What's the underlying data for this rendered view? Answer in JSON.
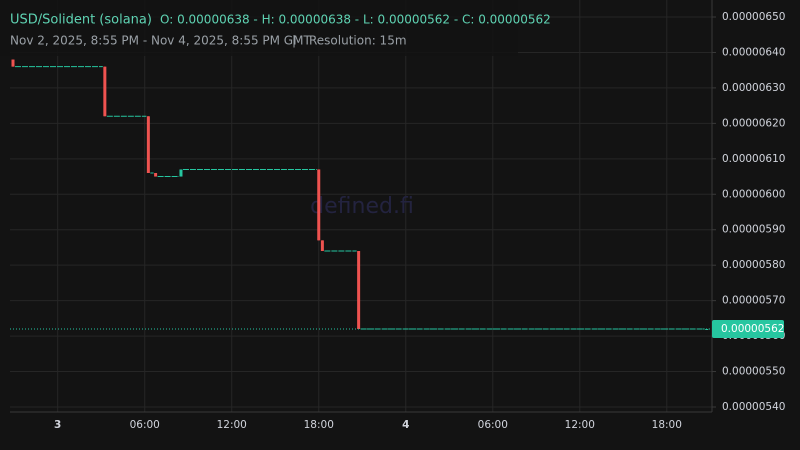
{
  "chart_data": {
    "type": "candlestick",
    "title": "USD/Solident (solana)",
    "ohlc": "O: 0.00000638 - H: 0.00000638 - L: 0.00000562 - C: 0.00000562",
    "subtitle": "Nov 2, 2025, 8:55 PM - Nov 4, 2025, 8:55 PM GMT",
    "separator": "|",
    "resolution": "Resolution: 15m",
    "watermark": "defined.fi",
    "up_color": "#26c6a0",
    "down_color": "#ef5350",
    "grid": true,
    "xlim": [
      "2025-11-02T20:55",
      "2025-11-04T21:07"
    ],
    "xticks": [
      {
        "value": "2025-11-03T00:00",
        "label": "3"
      },
      {
        "value": "2025-11-03T06:00",
        "label": "06:00"
      },
      {
        "value": "2025-11-03T12:00",
        "label": "12:00"
      },
      {
        "value": "2025-11-03T18:00",
        "label": "18:00"
      },
      {
        "value": "2025-11-04T00:00",
        "label": "4"
      },
      {
        "value": "2025-11-04T06:00",
        "label": "06:00"
      },
      {
        "value": "2025-11-04T12:00",
        "label": "12:00"
      },
      {
        "value": "2025-11-04T18:00",
        "label": "18:00"
      }
    ],
    "ylim": [
      5.388e-06,
      6.528e-06
    ],
    "yticks": [
      {
        "value": 5.4e-06,
        "label": "0.00000540"
      },
      {
        "value": 5.5e-06,
        "label": "0.00000550"
      },
      {
        "value": 5.6e-06,
        "label": "0.00000560"
      },
      {
        "value": 5.7e-06,
        "label": "0.00000570"
      },
      {
        "value": 5.8e-06,
        "label": "0.00000580"
      },
      {
        "value": 5.9e-06,
        "label": "0.00000590"
      },
      {
        "value": 6e-06,
        "label": "0.00000600"
      },
      {
        "value": 6.1e-06,
        "label": "0.00000610"
      },
      {
        "value": 6.2e-06,
        "label": "0.00000620"
      },
      {
        "value": 6.3e-06,
        "label": "0.00000630"
      },
      {
        "value": 6.4e-06,
        "label": "0.00000640"
      },
      {
        "value": 6.5e-06,
        "label": "0.00000650"
      }
    ],
    "last_price": {
      "value": 5.62e-06,
      "label": "0.00000562"
    },
    "x": [
      "2025-11-02T20:55",
      "2025-11-03T03:15",
      "2025-11-03T06:15",
      "2025-11-03T06:45",
      "2025-11-03T08:30",
      "2025-11-03T18:00",
      "2025-11-03T18:15",
      "2025-11-03T20:45",
      "2025-11-04T20:45"
    ],
    "open": [
      6.38e-06,
      6.36e-06,
      6.22e-06,
      6.06e-06,
      6.05e-06,
      6.07e-06,
      5.87e-06,
      5.84e-06,
      5.62e-06
    ],
    "high": [
      6.38e-06,
      6.36e-06,
      6.22e-06,
      6.06e-06,
      6.07e-06,
      6.07e-06,
      5.87e-06,
      5.84e-06,
      5.62e-06
    ],
    "low": [
      6.36e-06,
      6.22e-06,
      6.06e-06,
      6.05e-06,
      6.05e-06,
      5.87e-06,
      5.84e-06,
      5.62e-06,
      5.62e-06
    ],
    "close": [
      6.36e-06,
      6.22e-06,
      6.06e-06,
      6.05e-06,
      6.07e-06,
      5.87e-06,
      5.84e-06,
      5.62e-06,
      5.62e-06
    ]
  }
}
